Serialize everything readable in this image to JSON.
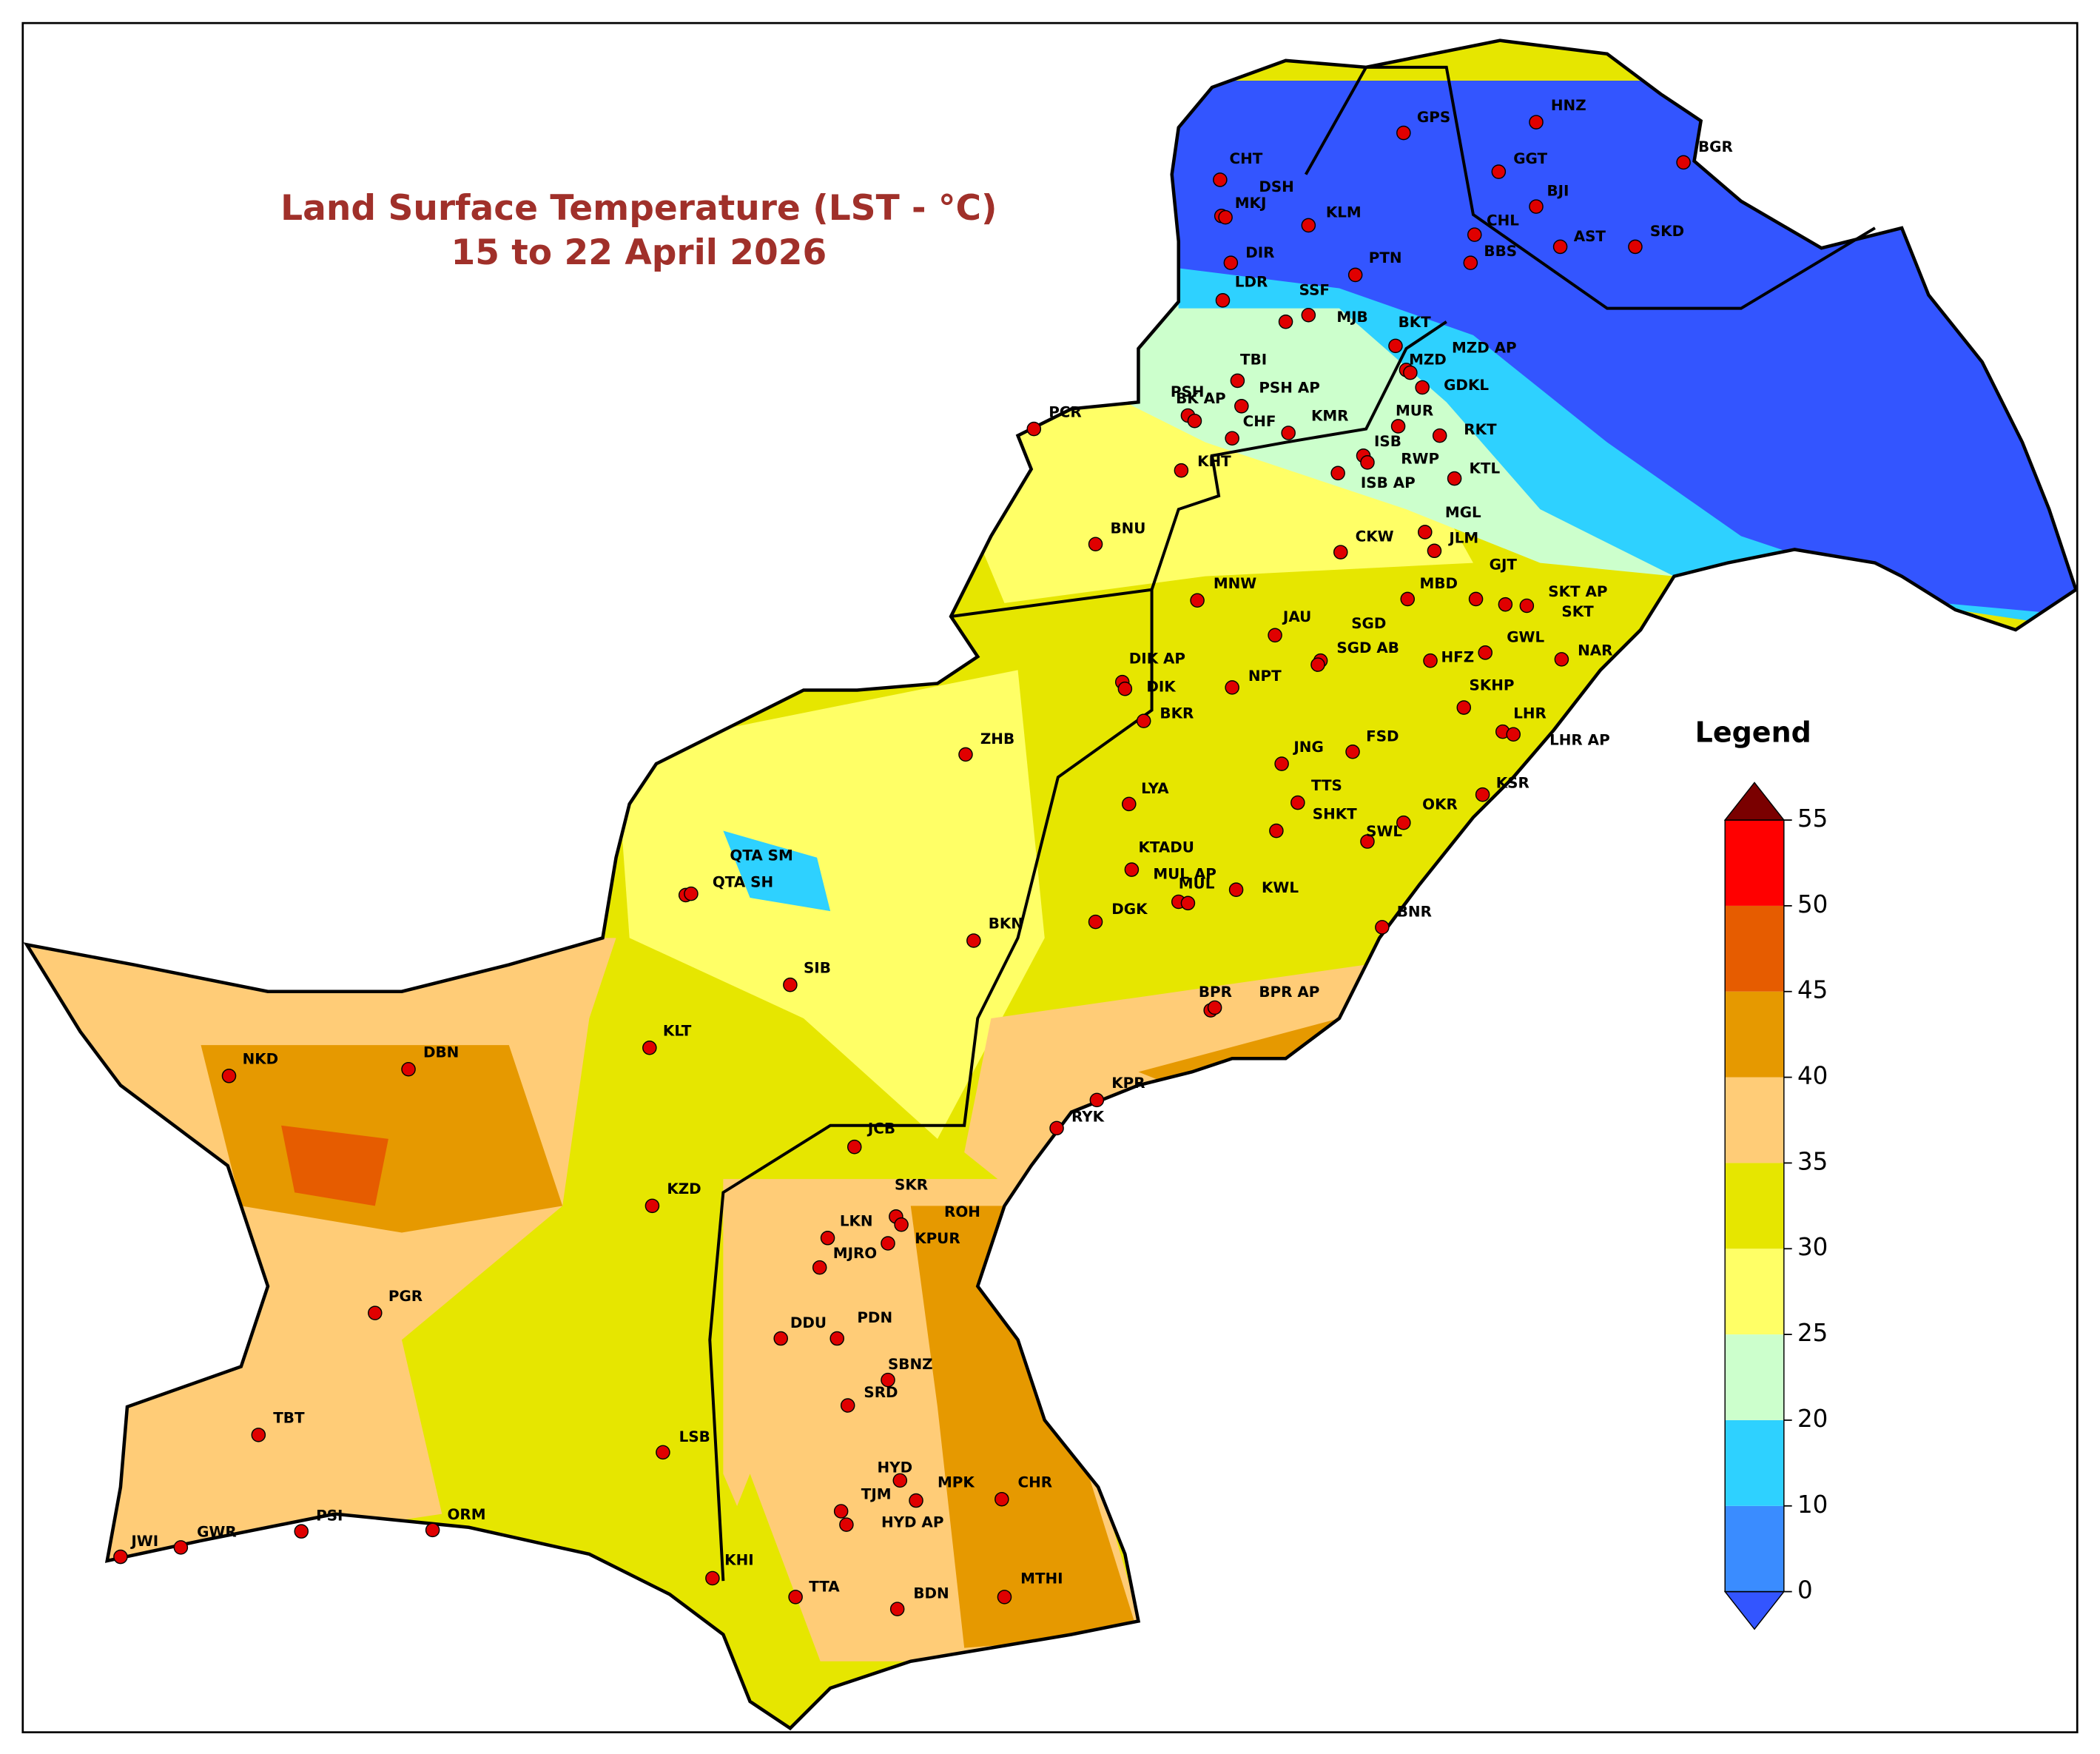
{
  "title": "Land Surface Temperature (LST - °C)",
  "subtitle": "15 to 22 April 2026",
  "stations": [
    "GPS",
    "HNZ",
    "BGR",
    "CHT",
    "GGT",
    "DSH",
    "BJI",
    "MKJ",
    "KLM",
    "CHL",
    "AST",
    "SKD",
    "BBS",
    "DIR",
    "PTN",
    "LDR",
    "SSF",
    "MJB",
    "BKT",
    "MZD AP",
    "MZD",
    "TBI",
    "PSH",
    "BK AP",
    "PSH AP",
    "GDKL",
    "CHF",
    "KMR",
    "MUR",
    "RKT",
    "ISB",
    "RWP",
    "KHT",
    "ISB AP",
    "KTL",
    "PCR",
    "BNU",
    "CKW",
    "MGL",
    "JLM",
    "GJT",
    "SKT AP",
    "SKT",
    "MBD",
    "MNW",
    "JAU",
    "SGD",
    "SGD AB",
    "GWL",
    "HFZ",
    "NAR",
    "DIK AP",
    "DIK",
    "NPT",
    "SKHP",
    "BKR",
    "LHR",
    "LHR AP",
    "ZHB",
    "JNG",
    "FSD",
    "LYA",
    "TTS",
    "KSR",
    "SHKT",
    "OKR",
    "SWL",
    "KTADU",
    "MUL AP",
    "MUL",
    "KWL",
    "QTA SM",
    "QTA SH",
    "DGK",
    "BNR",
    "BKN",
    "SIB",
    "BPR",
    "BPR AP",
    "KLT",
    "NKD",
    "DBN",
    "KPR",
    "RYK",
    "JCB",
    "KZD",
    "SKR",
    "ROH",
    "LKN",
    "KPUR",
    "MJRO",
    "PGR",
    "DDU",
    "PDN",
    "SBNZ",
    "SRD",
    "TBT",
    "LSB",
    "HYD",
    "MPK",
    "CHR",
    "TJM",
    "HYD AP",
    "JWI",
    "GWR",
    "PSI",
    "ORM",
    "KHI",
    "TTA",
    "BDN",
    "MTHI"
  ],
  "legend": {
    "title": "Legend",
    "ticks": [
      0,
      10,
      20,
      25,
      30,
      35,
      40,
      45,
      50,
      55
    ],
    "colors": [
      "#3a8cff",
      "#2ed1ff",
      "#ccffcc",
      "#ffff66",
      "#e6e600",
      "#ffcc77",
      "#e69900",
      "#e65c00",
      "#ff0000"
    ],
    "under_color": "#3355ff",
    "over_color": "#7a0000"
  }
}
